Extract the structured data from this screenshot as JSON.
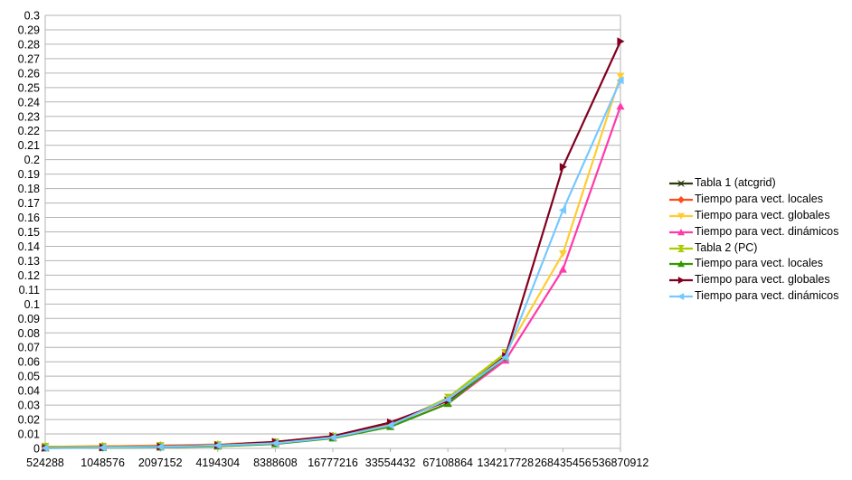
{
  "chart_data": {
    "type": "line",
    "title": "",
    "xlabel": "",
    "ylabel": "",
    "x": [
      "524288",
      "1048576",
      "2097152",
      "4194304",
      "8388608",
      "16777216",
      "33554432",
      "67108864",
      "134217728",
      "268435456",
      "536870912"
    ],
    "ylim": [
      0,
      0.3
    ],
    "ytick_step": 0.01,
    "grid": true,
    "legend_position": "right",
    "series": [
      {
        "name": "Tabla 1 (atcgrid)",
        "color": "#2d3c0f",
        "marker": "x",
        "values": [
          null,
          null,
          null,
          null,
          null,
          null,
          null,
          null,
          null,
          null,
          null
        ]
      },
      {
        "name": "Tiempo para vect. locales",
        "color": "#ff4d1c",
        "marker": "diamond",
        "values": [
          0.001,
          0.0015,
          0.002,
          0.0027,
          0.0045,
          0.0085,
          0.017,
          0.033,
          0.064,
          null,
          null
        ]
      },
      {
        "name": "Tiempo para vect. globales",
        "color": "#ffcc33",
        "marker": "triangle-down",
        "values": [
          0.001,
          0.0013,
          0.0018,
          0.0026,
          0.004,
          0.0075,
          0.016,
          0.034,
          0.066,
          0.135,
          0.258
        ]
      },
      {
        "name": "Tiempo para vect. dinámicos",
        "color": "#ff3aaa",
        "marker": "triangle-up",
        "values": [
          0.0005,
          0.001,
          0.0017,
          0.0022,
          0.004,
          0.0075,
          0.015,
          0.031,
          0.061,
          0.124,
          0.237
        ]
      },
      {
        "name": "Tabla 2 (PC)",
        "color": "#aacc00",
        "marker": "hourglass",
        "values": [
          0.001,
          0.001,
          0.0015,
          0.002,
          0.004,
          0.008,
          0.016,
          0.035,
          0.066,
          null,
          null
        ]
      },
      {
        "name": "Tiempo para vect. locales",
        "color": "#339900",
        "marker": "triangle-up",
        "values": [
          0.0002,
          0.0004,
          0.0008,
          0.0015,
          0.003,
          0.007,
          0.015,
          0.031,
          0.063,
          null,
          null
        ]
      },
      {
        "name": "Tiempo para vect. globales",
        "color": "#800020",
        "marker": "triangle-right",
        "values": [
          0.0003,
          0.0006,
          0.0012,
          0.0022,
          0.0045,
          0.0085,
          0.018,
          0.033,
          0.064,
          0.195,
          0.282
        ]
      },
      {
        "name": "Tiempo para vect. dinámicos",
        "color": "#77c8ff",
        "marker": "triangle-left",
        "values": [
          0.0002,
          0.0005,
          0.001,
          0.002,
          0.0035,
          0.0075,
          0.016,
          0.034,
          0.063,
          0.165,
          0.255
        ]
      }
    ]
  }
}
